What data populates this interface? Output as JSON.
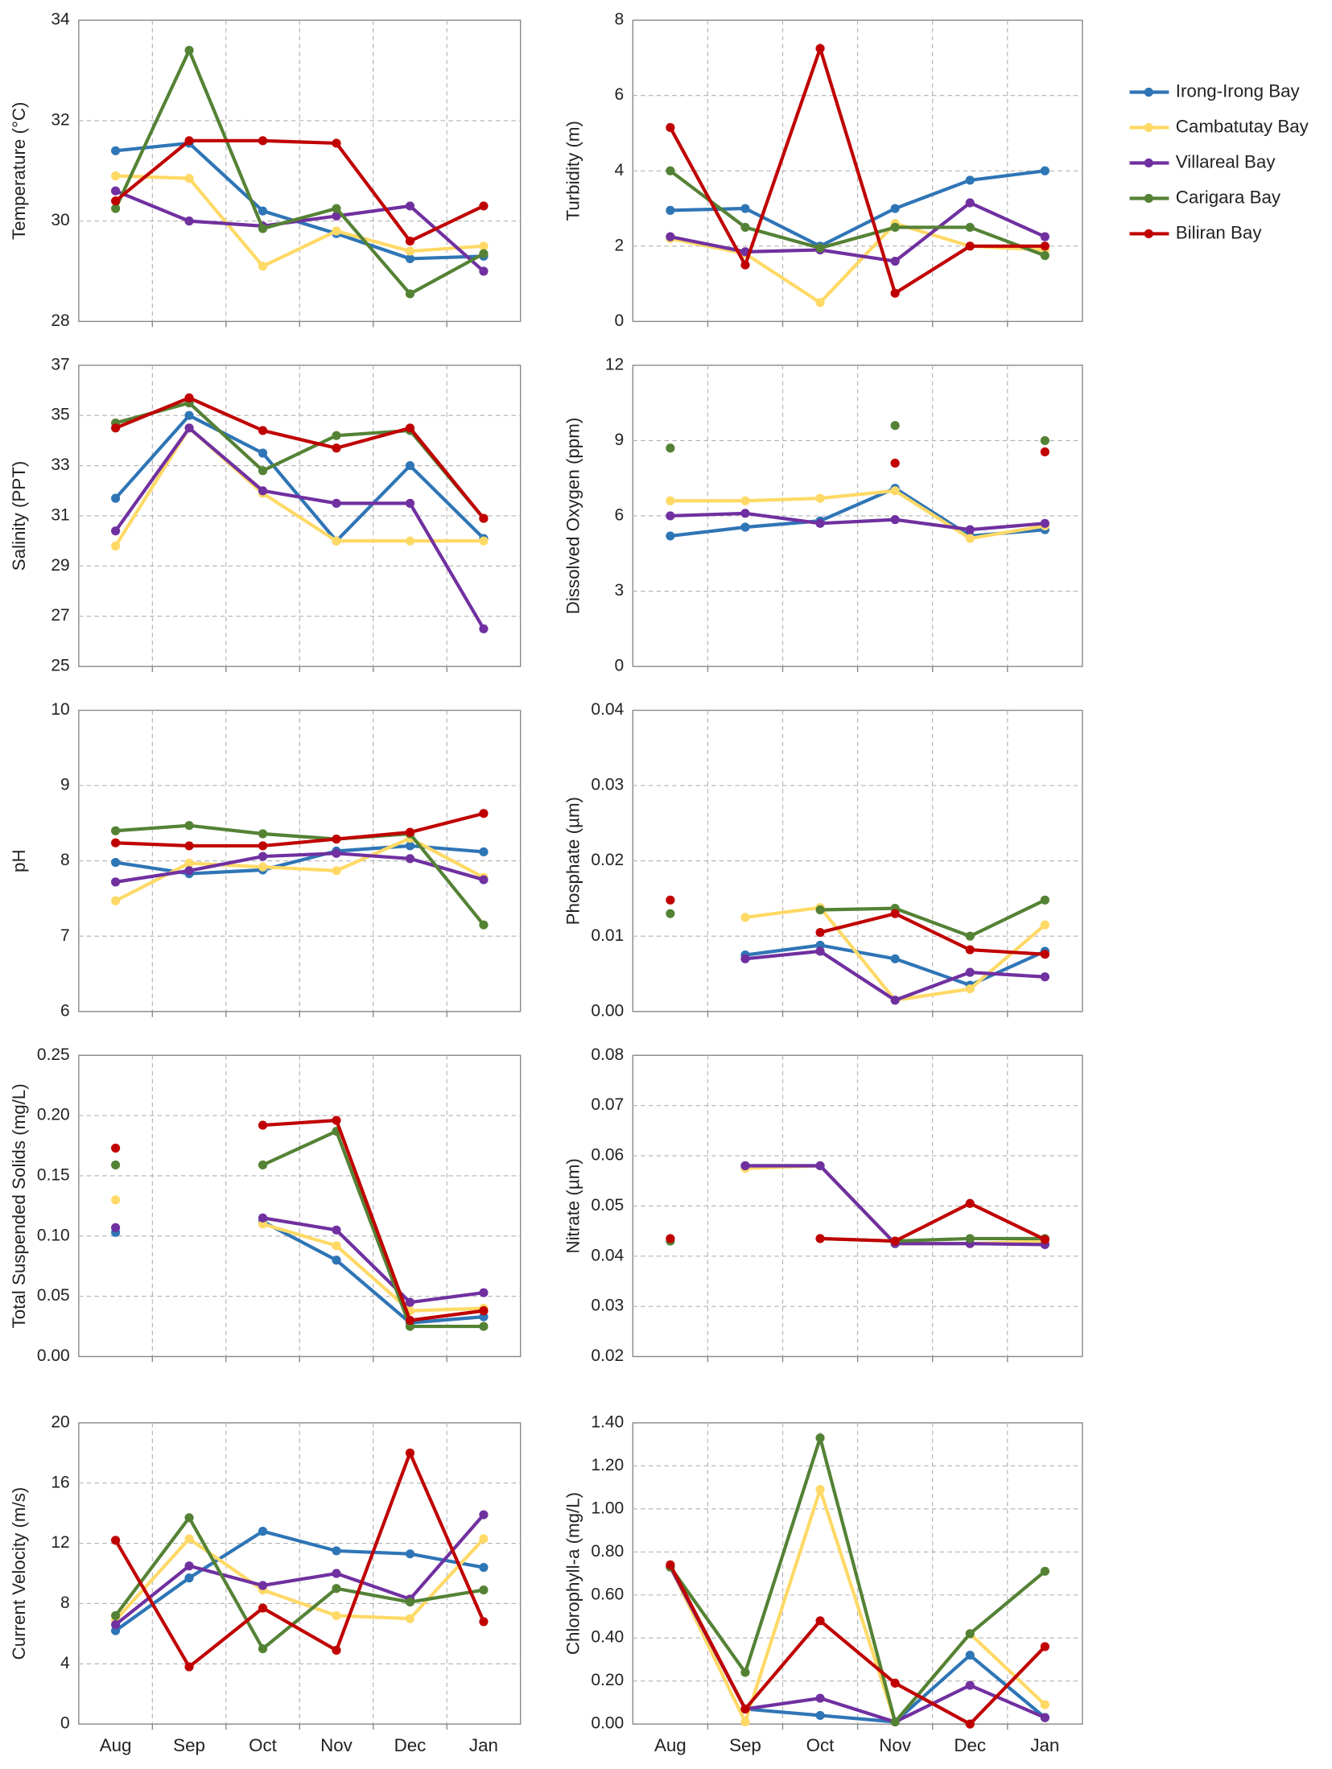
{
  "chart_data": [
    {
      "type": "line",
      "y_label": "Temperature (°C)",
      "ylim": [
        28,
        34
      ],
      "yticks": [
        28,
        30,
        32,
        34
      ],
      "grid": true,
      "legend": "right",
      "series": [
        {
          "name": "Irong-Irong Bay",
          "color": "#2e75b6",
          "values": [
            31.4,
            31.55,
            30.2,
            29.75,
            29.25,
            29.3
          ]
        },
        {
          "name": "Cambatutay Bay",
          "color": "#ffd966",
          "values": [
            30.9,
            30.85,
            29.1,
            29.8,
            29.4,
            29.5
          ]
        },
        {
          "name": "Villareal Bay",
          "color": "#7030a0",
          "values": [
            30.6,
            30.0,
            29.9,
            30.1,
            30.3,
            29.0
          ]
        },
        {
          "name": "Carigara Bay",
          "color": "#548235",
          "values": [
            30.25,
            33.4,
            29.85,
            30.25,
            28.55,
            29.35
          ]
        },
        {
          "name": "Biliran Bay",
          "color": "#c00000",
          "values": [
            30.4,
            31.6,
            31.6,
            31.55,
            29.6,
            30.3
          ]
        }
      ]
    },
    {
      "type": "line",
      "y_label": "Turbidity (m)",
      "ylim": [
        0,
        8
      ],
      "yticks": [
        0,
        2,
        4,
        6,
        8
      ],
      "grid": true,
      "series": [
        {
          "color": "#2e75b6",
          "values": [
            2.95,
            3.0,
            2.0,
            3.0,
            3.75,
            4.0
          ]
        },
        {
          "color": "#ffd966",
          "values": [
            2.2,
            1.8,
            0.5,
            2.6,
            2.0,
            1.9
          ]
        },
        {
          "color": "#7030a0",
          "values": [
            2.25,
            1.85,
            1.9,
            1.6,
            3.15,
            2.25
          ]
        },
        {
          "color": "#548235",
          "values": [
            4.0,
            2.5,
            1.95,
            2.5,
            2.5,
            1.75
          ]
        },
        {
          "color": "#c00000",
          "values": [
            5.15,
            1.5,
            7.25,
            0.75,
            2.0,
            2.0
          ]
        }
      ]
    },
    {
      "type": "line",
      "y_label": "Salinity (PPT)",
      "ylim": [
        25,
        37
      ],
      "yticks": [
        25,
        27,
        29,
        31,
        33,
        35,
        37
      ],
      "grid": true,
      "series": [
        {
          "color": "#2e75b6",
          "values": [
            31.7,
            35.0,
            33.5,
            30.0,
            33.0,
            30.1
          ]
        },
        {
          "color": "#ffd966",
          "values": [
            29.8,
            34.5,
            31.9,
            30.0,
            30.0,
            30.0
          ]
        },
        {
          "color": "#7030a0",
          "values": [
            30.4,
            34.5,
            32.0,
            31.5,
            31.5,
            26.5
          ]
        },
        {
          "color": "#548235",
          "values": [
            34.7,
            35.5,
            32.8,
            34.2,
            34.4,
            30.9
          ]
        },
        {
          "color": "#c00000",
          "values": [
            34.5,
            35.7,
            34.4,
            33.7,
            34.5,
            30.9
          ]
        }
      ]
    },
    {
      "type": "line",
      "y_label": "Dissolved Oxygen (ppm)",
      "ylim": [
        0,
        12
      ],
      "yticks": [
        0,
        3,
        6,
        9,
        12
      ],
      "grid": true,
      "series": [
        {
          "color": "#2e75b6",
          "values": [
            5.2,
            5.55,
            5.8,
            7.1,
            5.2,
            5.45
          ]
        },
        {
          "color": "#ffd966",
          "values": [
            6.6,
            6.6,
            6.7,
            7.0,
            5.1,
            5.6
          ]
        },
        {
          "color": "#7030a0",
          "values": [
            6.0,
            6.1,
            5.7,
            5.85,
            5.45,
            5.7
          ]
        },
        {
          "color": "#548235",
          "values": [
            8.7,
            null,
            null,
            9.6,
            null,
            9.0
          ]
        },
        {
          "color": "#c00000",
          "values": [
            null,
            null,
            null,
            8.1,
            null,
            8.55
          ]
        }
      ]
    },
    {
      "type": "line",
      "y_label": "pH",
      "ylim": [
        6,
        10
      ],
      "yticks": [
        6,
        7,
        8,
        9,
        10
      ],
      "grid": true,
      "series": [
        {
          "color": "#2e75b6",
          "values": [
            7.98,
            7.83,
            7.88,
            8.13,
            8.2,
            8.12
          ]
        },
        {
          "color": "#ffd966",
          "values": [
            7.47,
            7.97,
            7.92,
            7.87,
            8.3,
            7.78
          ]
        },
        {
          "color": "#7030a0",
          "values": [
            7.72,
            7.87,
            8.06,
            8.1,
            8.03,
            7.75
          ]
        },
        {
          "color": "#548235",
          "values": [
            8.4,
            8.47,
            8.36,
            8.29,
            8.36,
            7.15
          ]
        },
        {
          "color": "#c00000",
          "values": [
            8.24,
            8.2,
            8.2,
            8.29,
            8.38,
            8.63
          ]
        }
      ]
    },
    {
      "type": "line",
      "y_label": "Phosphate (µm)",
      "ylim": [
        0,
        0.04
      ],
      "yticks": [
        {
          "value": 0,
          "label": "0.00"
        },
        0.01,
        0.02,
        0.03,
        0.04
      ],
      "grid": true,
      "series": [
        {
          "color": "#2e75b6",
          "values": [
            null,
            0.0075,
            0.0088,
            0.007,
            0.0035,
            0.008
          ]
        },
        {
          "color": "#ffd966",
          "values": [
            null,
            0.0125,
            0.0138,
            0.0015,
            0.003,
            0.0115
          ]
        },
        {
          "color": "#7030a0",
          "values": [
            null,
            0.007,
            0.008,
            0.0015,
            0.0052,
            0.0046
          ]
        },
        {
          "color": "#548235",
          "values": [
            0.013,
            null,
            0.0135,
            0.0137,
            0.01,
            0.0148
          ]
        },
        {
          "color": "#c00000",
          "values": [
            0.0148,
            null,
            0.0105,
            0.013,
            0.0082,
            0.0076
          ]
        }
      ]
    },
    {
      "type": "line",
      "y_label": "Total Suspended Solids (mg/L)",
      "ylim": [
        0,
        0.25
      ],
      "yticks": [
        {
          "value": 0,
          "label": "0.00"
        },
        0.05,
        {
          "value": 0.1,
          "label": "0.10"
        },
        0.15,
        {
          "value": 0.2,
          "label": "0.20"
        },
        0.25
      ],
      "grid": true,
      "series": [
        {
          "color": "#2e75b6",
          "values": [
            0.103,
            null,
            0.112,
            0.08,
            0.028,
            0.033
          ]
        },
        {
          "color": "#ffd966",
          "values": [
            0.13,
            null,
            0.11,
            0.092,
            0.038,
            0.04
          ]
        },
        {
          "color": "#7030a0",
          "values": [
            0.107,
            null,
            0.115,
            0.105,
            0.045,
            0.053
          ]
        },
        {
          "color": "#548235",
          "values": [
            0.159,
            null,
            0.159,
            0.187,
            0.025,
            0.025
          ]
        },
        {
          "color": "#c00000",
          "values": [
            0.173,
            null,
            0.192,
            0.196,
            0.03,
            0.038
          ]
        }
      ]
    },
    {
      "type": "line",
      "y_label": "Nitrate (µm)",
      "ylim": [
        0.02,
        0.08
      ],
      "yticks": [
        0.02,
        0.03,
        0.04,
        0.05,
        0.06,
        0.07,
        0.08
      ],
      "grid": true,
      "series": [
        {
          "color": "#2e75b6",
          "values": [
            null,
            0.058,
            0.058,
            0.0425,
            0.0425,
            0.0425
          ]
        },
        {
          "color": "#ffd966",
          "values": [
            null,
            0.0575,
            0.058,
            0.0425,
            0.0425,
            0.043
          ]
        },
        {
          "color": "#7030a0",
          "values": [
            null,
            0.058,
            0.058,
            0.0425,
            0.0425,
            0.0423
          ]
        },
        {
          "color": "#548235",
          "values": [
            0.043,
            null,
            0.0435,
            0.043,
            0.0435,
            0.0435
          ]
        },
        {
          "color": "#c00000",
          "values": [
            0.0435,
            null,
            0.0435,
            0.043,
            0.0505,
            0.0433
          ]
        }
      ]
    },
    {
      "type": "line",
      "y_label": "Current Velocity (m/s)",
      "ylim": [
        0,
        20
      ],
      "yticks": [
        0,
        4,
        8,
        12,
        16,
        20
      ],
      "grid": true,
      "categories": [
        "Aug",
        "Sep",
        "Oct",
        "Nov",
        "Dec",
        "Jan"
      ],
      "series": [
        {
          "color": "#2e75b6",
          "values": [
            6.2,
            9.7,
            12.8,
            11.5,
            11.3,
            10.4
          ]
        },
        {
          "color": "#ffd966",
          "values": [
            6.9,
            12.3,
            8.9,
            7.2,
            7.0,
            12.3
          ]
        },
        {
          "color": "#7030a0",
          "values": [
            6.6,
            10.5,
            9.2,
            10.0,
            8.3,
            13.9
          ]
        },
        {
          "color": "#548235",
          "values": [
            7.2,
            13.7,
            5.0,
            9.0,
            8.1,
            8.9
          ]
        },
        {
          "color": "#c00000",
          "values": [
            12.2,
            3.8,
            7.7,
            4.9,
            18.0,
            6.8
          ]
        }
      ]
    },
    {
      "type": "line",
      "y_label": "Chlorophyll-a (mg/L)",
      "ylim": [
        0,
        1.4
      ],
      "yticks": [
        {
          "value": 0,
          "label": "0.00"
        },
        {
          "value": 0.2,
          "label": "0.20"
        },
        {
          "value": 0.4,
          "label": "0.40"
        },
        {
          "value": 0.6,
          "label": "0.60"
        },
        {
          "value": 0.8,
          "label": "0.80"
        },
        {
          "value": 1.0,
          "label": "1.00"
        },
        {
          "value": 1.2,
          "label": "1.20"
        },
        {
          "value": 1.4,
          "label": "1.40"
        }
      ],
      "grid": true,
      "categories": [
        "Aug",
        "Sep",
        "Oct",
        "Nov",
        "Dec",
        "Jan"
      ],
      "series": [
        {
          "color": "#2e75b6",
          "values": [
            0.73,
            0.07,
            0.04,
            0.01,
            0.32,
            0.03
          ]
        },
        {
          "color": "#ffd966",
          "values": [
            0.73,
            0.01,
            1.09,
            0.01,
            0.42,
            0.09
          ]
        },
        {
          "color": "#7030a0",
          "values": [
            0.73,
            0.07,
            0.12,
            0.01,
            0.18,
            0.03
          ]
        },
        {
          "color": "#548235",
          "values": [
            0.73,
            0.24,
            1.33,
            0.01,
            0.42,
            0.71
          ]
        },
        {
          "color": "#c00000",
          "values": [
            0.74,
            0.07,
            0.48,
            0.19,
            0.0,
            0.36
          ]
        }
      ]
    }
  ]
}
